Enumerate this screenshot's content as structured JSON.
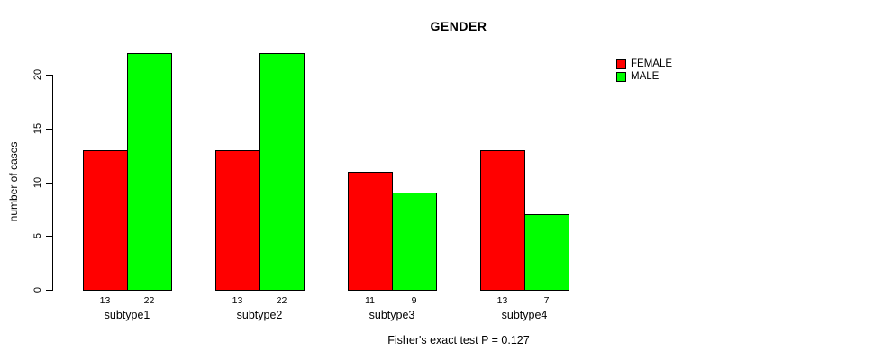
{
  "chart_data": {
    "type": "bar",
    "title": "GENDER",
    "ylabel": "number of cases",
    "xlabel": "",
    "categories": [
      "subtype1",
      "subtype2",
      "subtype3",
      "subtype4"
    ],
    "series": [
      {
        "name": "FEMALE",
        "color": "#ff0000",
        "values": [
          13,
          13,
          11,
          13
        ]
      },
      {
        "name": "MALE",
        "color": "#00ff00",
        "values": [
          22,
          22,
          9,
          7
        ]
      }
    ],
    "bar_value_labels": [
      [
        "13",
        "22"
      ],
      [
        "13",
        "22"
      ],
      [
        "11",
        "9"
      ],
      [
        "13",
        "7"
      ]
    ],
    "yticks": [
      0,
      5,
      10,
      15,
      20
    ],
    "ylim": [
      0,
      23
    ],
    "grid": false,
    "legend_position": "top-right-outside",
    "legend": [
      "FEMALE",
      "MALE"
    ],
    "footnote": "Fisher's exact test P = 0.127",
    "axis_color": "#000000",
    "background_color": "#ffffff"
  }
}
